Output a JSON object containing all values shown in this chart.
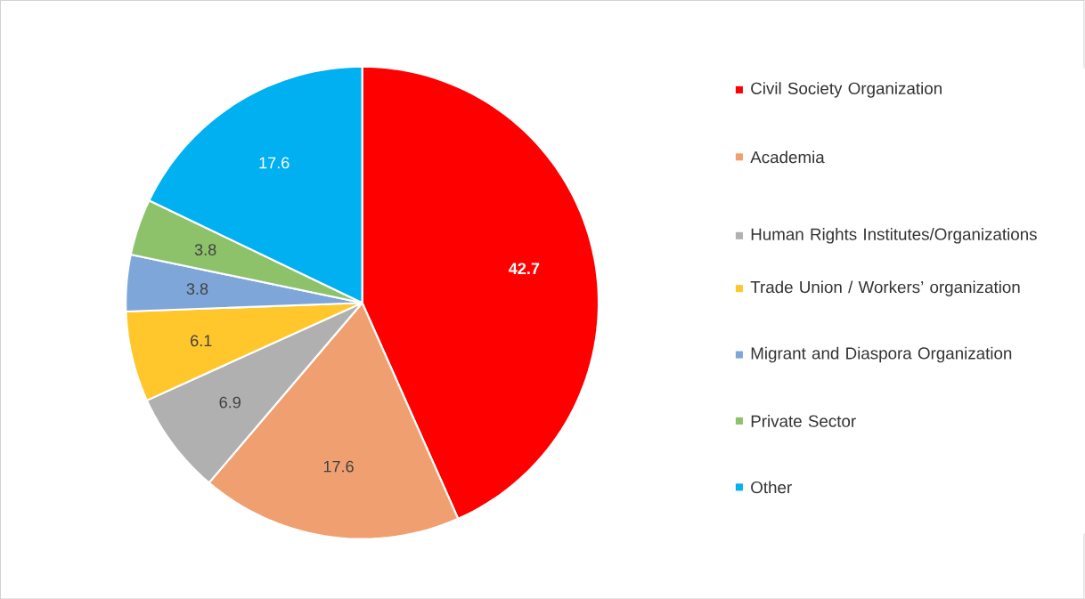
{
  "chart_data": {
    "type": "pie",
    "categories": [
      "Civil Society Organization",
      "Academia",
      "Human Rights Institutes/Organizations",
      "Trade Union / Workers’ organization",
      "Migrant and Diaspora Organization",
      "Private Sector",
      "Other"
    ],
    "values": [
      42.7,
      17.6,
      6.9,
      6.1,
      3.8,
      3.8,
      17.6
    ],
    "colors": [
      "#ff0000",
      "#f0a070",
      "#b0b0b0",
      "#ffc72c",
      "#7ea6d9",
      "#8dc26a",
      "#00b0f0"
    ],
    "data_labels": true,
    "legend": "right"
  }
}
